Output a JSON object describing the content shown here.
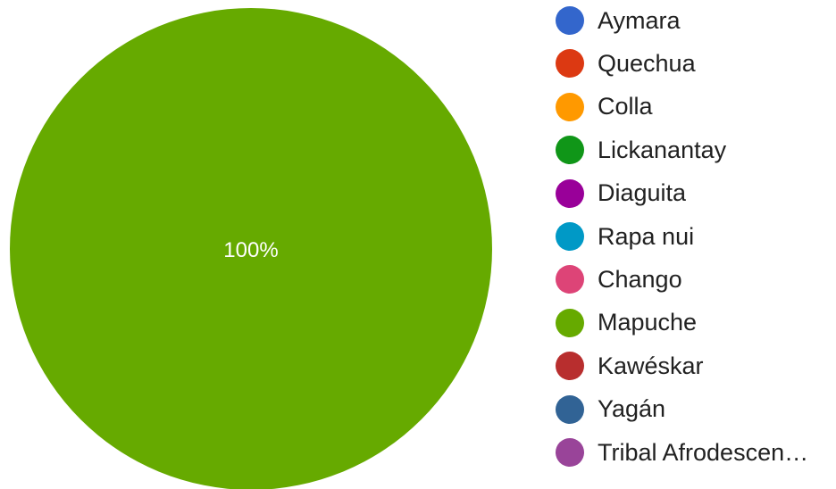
{
  "chart_data": {
    "type": "pie",
    "legend_position": "right",
    "slices": [
      {
        "label": "Aymara",
        "value": 0,
        "color": "#3366cc"
      },
      {
        "label": "Quechua",
        "value": 0,
        "color": "#dc3912"
      },
      {
        "label": "Colla",
        "value": 0,
        "color": "#ff9900"
      },
      {
        "label": "Lickanantay",
        "value": 0,
        "color": "#109618"
      },
      {
        "label": "Diaguita",
        "value": 0,
        "color": "#990099"
      },
      {
        "label": "Rapa nui",
        "value": 0,
        "color": "#0099c6"
      },
      {
        "label": "Chango",
        "value": 0,
        "color": "#dd4477"
      },
      {
        "label": "Mapuche",
        "value": 100,
        "color": "#66aa00",
        "data_label": "100%"
      },
      {
        "label": "Kawéskar",
        "value": 0,
        "color": "#b82e2e"
      },
      {
        "label": "Yagán",
        "value": 0,
        "color": "#316395"
      },
      {
        "label": "Tribal Afrodescen…",
        "value": 0,
        "color": "#994499"
      }
    ]
  }
}
